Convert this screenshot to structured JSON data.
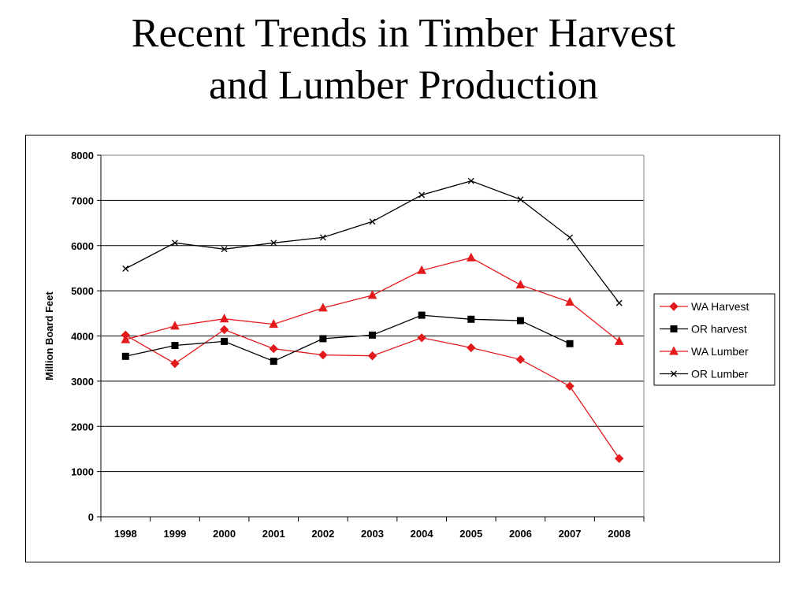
{
  "slide": {
    "title_line_1": "Recent Trends in Timber Harvest",
    "title_line_2": "and Lumber Production"
  },
  "chart_data": {
    "type": "line",
    "title": "",
    "xlabel": "",
    "ylabel": "Million Board Feet",
    "categories": [
      "1998",
      "1999",
      "2000",
      "2001",
      "2002",
      "2003",
      "2004",
      "2005",
      "2006",
      "2007",
      "2008"
    ],
    "ylim": [
      0,
      8000
    ],
    "yticks": [
      0,
      1000,
      2000,
      3000,
      4000,
      5000,
      6000,
      7000,
      8000
    ],
    "grid": true,
    "legend_position": "right",
    "series": [
      {
        "name": "WA Harvest",
        "color": "#e31a1c",
        "line_color": "#e31a1c",
        "marker": "diamond",
        "values": [
          4020,
          3390,
          4140,
          3720,
          3580,
          3560,
          3960,
          3740,
          3480,
          2890,
          1290
        ]
      },
      {
        "name": "OR harvest",
        "color": "#000000",
        "line_color": "#000000",
        "marker": "square",
        "values": [
          3550,
          3790,
          3880,
          3440,
          3940,
          4020,
          4460,
          4370,
          4340,
          3830,
          null
        ]
      },
      {
        "name": "WA Lumber",
        "color": "#e31a1c",
        "line_color": "#e31a1c",
        "marker": "triangle",
        "values": [
          3920,
          4220,
          4380,
          4260,
          4620,
          4900,
          5450,
          5730,
          5130,
          4750,
          3880
        ]
      },
      {
        "name": "OR Lumber",
        "color": "#000000",
        "line_color": "#000000",
        "marker": "x",
        "values": [
          5490,
          6060,
          5920,
          6060,
          6180,
          6530,
          7120,
          7430,
          7020,
          6180,
          4730
        ]
      }
    ]
  }
}
